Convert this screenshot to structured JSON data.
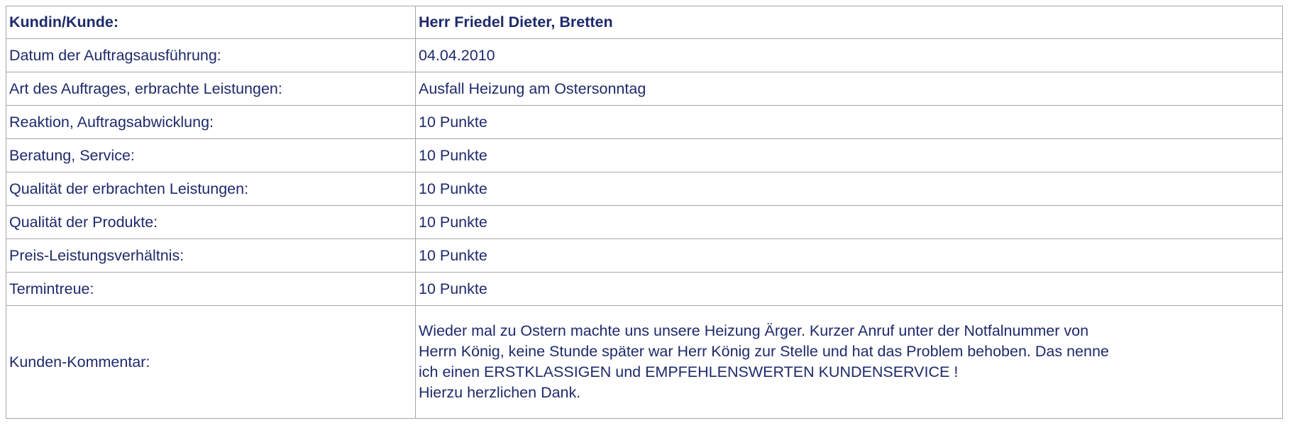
{
  "header": {
    "label": "Kundin/Kunde:",
    "value": "Herr Friedel Dieter, Bretten"
  },
  "rows": [
    {
      "label": "Datum der Auftragsausführung:",
      "value": "04.04.2010"
    },
    {
      "label": "Art des Auftrages, erbrachte Leistungen:",
      "value": "Ausfall Heizung am Ostersonntag"
    },
    {
      "label": "Reaktion, Auftragsabwicklung:",
      "value": "10 Punkte"
    },
    {
      "label": "Beratung, Service:",
      "value": "10 Punkte"
    },
    {
      "label": "Qualität der erbrachten Leistungen:",
      "value": "10 Punkte"
    },
    {
      "label": "Qualität der Produkte:",
      "value": "10 Punkte"
    },
    {
      "label": "Preis-Leistungsverhältnis:",
      "value": "10 Punkte"
    },
    {
      "label": "Termintreue:",
      "value": "10 Punkte"
    }
  ],
  "comment": {
    "label": "Kunden-Kommentar:",
    "lines": [
      "Wieder mal zu Ostern machte uns unsere Heizung Ärger. Kurzer Anruf unter der Notfalnummer von",
      "Herrn König, keine Stunde später war Herr König zur Stelle und hat das Problem behoben. Das nenne",
      "ich einen ERSTKLASSIGEN und EMPFEHLENSWERTEN KUNDENSERVICE !",
      "Hierzu herzlichen Dank."
    ]
  },
  "colors": {
    "text": "#1e2a6b",
    "border": "#a6a6a6",
    "background": "#ffffff"
  }
}
